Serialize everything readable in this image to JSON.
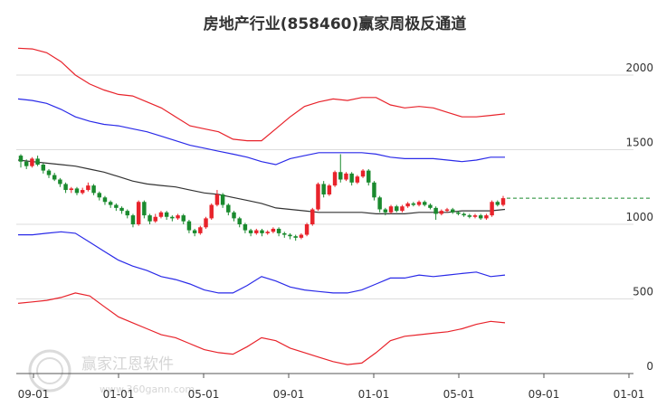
{
  "chart_data": {
    "type": "candlestick",
    "title": "房地产行业(858460)赢家周极反通道",
    "yticks": [
      0,
      500,
      1000,
      1500,
      2000
    ],
    "ylim": [
      0,
      2200
    ],
    "xticks": [
      "09-01",
      "01-01",
      "05-01",
      "09-01",
      "01-01",
      "05-01",
      "09-01",
      "01-01"
    ],
    "grid": "horizontal",
    "colors": {
      "up": "#e8232b",
      "down": "#1a8a2e",
      "upper_red": "#e8232b",
      "lower_red": "#e8232b",
      "upper_blue": "#2a2ae8",
      "lower_blue": "#2a2ae8",
      "middle": "#333333",
      "last_price": "#1a8a2e"
    },
    "last_price": 1175,
    "candles": [
      [
        1460,
        1420,
        1470,
        1380
      ],
      [
        1420,
        1390,
        1435,
        1370
      ],
      [
        1390,
        1440,
        1450,
        1380
      ],
      [
        1440,
        1400,
        1460,
        1390
      ],
      [
        1400,
        1360,
        1410,
        1340
      ],
      [
        1360,
        1330,
        1370,
        1310
      ],
      [
        1330,
        1300,
        1345,
        1290
      ],
      [
        1300,
        1270,
        1310,
        1250
      ],
      [
        1270,
        1230,
        1280,
        1210
      ],
      [
        1230,
        1240,
        1250,
        1210
      ],
      [
        1240,
        1210,
        1250,
        1195
      ],
      [
        1210,
        1230,
        1245,
        1200
      ],
      [
        1230,
        1260,
        1280,
        1220
      ],
      [
        1260,
        1210,
        1270,
        1195
      ],
      [
        1210,
        1180,
        1220,
        1160
      ],
      [
        1180,
        1150,
        1190,
        1130
      ],
      [
        1150,
        1130,
        1160,
        1110
      ],
      [
        1130,
        1110,
        1140,
        1090
      ],
      [
        1110,
        1090,
        1120,
        1070
      ],
      [
        1090,
        1060,
        1100,
        1040
      ],
      [
        1060,
        1000,
        1070,
        980
      ],
      [
        1000,
        1150,
        1160,
        990
      ],
      [
        1150,
        1060,
        1160,
        1040
      ],
      [
        1060,
        1020,
        1070,
        1000
      ],
      [
        1020,
        1050,
        1070,
        1010
      ],
      [
        1050,
        1080,
        1090,
        1040
      ],
      [
        1080,
        1050,
        1090,
        1030
      ],
      [
        1050,
        1040,
        1060,
        1020
      ],
      [
        1040,
        1060,
        1070,
        1030
      ],
      [
        1060,
        1020,
        1070,
        1000
      ],
      [
        1020,
        960,
        1030,
        940
      ],
      [
        960,
        940,
        970,
        920
      ],
      [
        940,
        980,
        990,
        930
      ],
      [
        980,
        1040,
        1050,
        970
      ],
      [
        1040,
        1130,
        1140,
        1030
      ],
      [
        1130,
        1200,
        1230,
        1120
      ],
      [
        1200,
        1130,
        1210,
        1110
      ],
      [
        1130,
        1080,
        1140,
        1060
      ],
      [
        1080,
        1040,
        1090,
        1020
      ],
      [
        1040,
        1000,
        1050,
        980
      ],
      [
        1000,
        960,
        1010,
        940
      ],
      [
        960,
        940,
        970,
        920
      ],
      [
        940,
        960,
        970,
        930
      ],
      [
        960,
        940,
        970,
        920
      ],
      [
        940,
        950,
        960,
        930
      ],
      [
        950,
        970,
        980,
        940
      ],
      [
        970,
        940,
        980,
        920
      ],
      [
        940,
        930,
        950,
        910
      ],
      [
        930,
        920,
        940,
        900
      ],
      [
        920,
        910,
        930,
        890
      ],
      [
        910,
        930,
        940,
        900
      ],
      [
        930,
        1000,
        1010,
        920
      ],
      [
        1000,
        1100,
        1110,
        990
      ],
      [
        1100,
        1270,
        1280,
        1090
      ],
      [
        1270,
        1200,
        1290,
        1180
      ],
      [
        1200,
        1260,
        1270,
        1190
      ],
      [
        1260,
        1350,
        1360,
        1250
      ],
      [
        1350,
        1300,
        1470,
        1280
      ],
      [
        1300,
        1340,
        1350,
        1290
      ],
      [
        1340,
        1280,
        1350,
        1260
      ],
      [
        1280,
        1320,
        1330,
        1270
      ],
      [
        1320,
        1360,
        1370,
        1310
      ],
      [
        1360,
        1280,
        1370,
        1260
      ],
      [
        1280,
        1180,
        1290,
        1160
      ],
      [
        1180,
        1100,
        1190,
        1080
      ],
      [
        1100,
        1080,
        1110,
        1060
      ],
      [
        1080,
        1120,
        1130,
        1070
      ],
      [
        1120,
        1090,
        1130,
        1080
      ],
      [
        1090,
        1120,
        1130,
        1080
      ],
      [
        1120,
        1140,
        1150,
        1110
      ],
      [
        1140,
        1130,
        1150,
        1120
      ],
      [
        1130,
        1150,
        1160,
        1120
      ],
      [
        1150,
        1130,
        1160,
        1120
      ],
      [
        1130,
        1110,
        1140,
        1100
      ],
      [
        1110,
        1070,
        1120,
        1030
      ],
      [
        1070,
        1090,
        1100,
        1060
      ],
      [
        1090,
        1100,
        1110,
        1080
      ],
      [
        1100,
        1080,
        1110,
        1070
      ],
      [
        1080,
        1070,
        1090,
        1060
      ],
      [
        1070,
        1060,
        1080,
        1050
      ],
      [
        1060,
        1050,
        1070,
        1040
      ],
      [
        1050,
        1060,
        1070,
        1040
      ],
      [
        1060,
        1040,
        1070,
        1030
      ],
      [
        1040,
        1060,
        1070,
        1030
      ],
      [
        1060,
        1150,
        1160,
        1050
      ],
      [
        1150,
        1130,
        1160,
        1120
      ],
      [
        1130,
        1175,
        1190,
        1120
      ]
    ],
    "upper_red_band": [
      2180,
      2175,
      2150,
      2090,
      2000,
      1940,
      1900,
      1870,
      1860,
      1820,
      1780,
      1720,
      1660,
      1640,
      1620,
      1570,
      1560,
      1560,
      1640,
      1720,
      1790,
      1820,
      1840,
      1830,
      1850,
      1850,
      1800,
      1780,
      1790,
      1780,
      1750,
      1720,
      1720,
      1730,
      1740
    ],
    "upper_blue_band": [
      1840,
      1830,
      1810,
      1770,
      1720,
      1690,
      1670,
      1660,
      1640,
      1620,
      1590,
      1560,
      1530,
      1510,
      1490,
      1470,
      1450,
      1420,
      1400,
      1440,
      1460,
      1480,
      1480,
      1480,
      1480,
      1470,
      1450,
      1440,
      1440,
      1440,
      1430,
      1420,
      1430,
      1450,
      1450
    ],
    "middle_line": [
      1430,
      1420,
      1410,
      1400,
      1390,
      1370,
      1350,
      1320,
      1290,
      1270,
      1260,
      1250,
      1230,
      1210,
      1200,
      1180,
      1160,
      1140,
      1110,
      1100,
      1090,
      1080,
      1080,
      1080,
      1080,
      1070,
      1070,
      1070,
      1080,
      1080,
      1080,
      1090,
      1090,
      1090,
      1100
    ],
    "lower_blue_band": [
      930,
      930,
      940,
      950,
      940,
      880,
      820,
      760,
      720,
      690,
      650,
      630,
      600,
      560,
      540,
      540,
      590,
      650,
      620,
      580,
      560,
      550,
      540,
      540,
      560,
      600,
      640,
      640,
      660,
      650,
      660,
      670,
      680,
      650,
      660
    ],
    "lower_red_band": [
      470,
      480,
      490,
      510,
      540,
      520,
      450,
      380,
      340,
      300,
      260,
      240,
      200,
      160,
      140,
      130,
      180,
      240,
      220,
      170,
      140,
      110,
      80,
      60,
      70,
      140,
      220,
      250,
      260,
      270,
      280,
      300,
      330,
      350,
      340
    ]
  },
  "watermark": {
    "text": "赢家江恩软件",
    "url": "www.360gann.com"
  }
}
